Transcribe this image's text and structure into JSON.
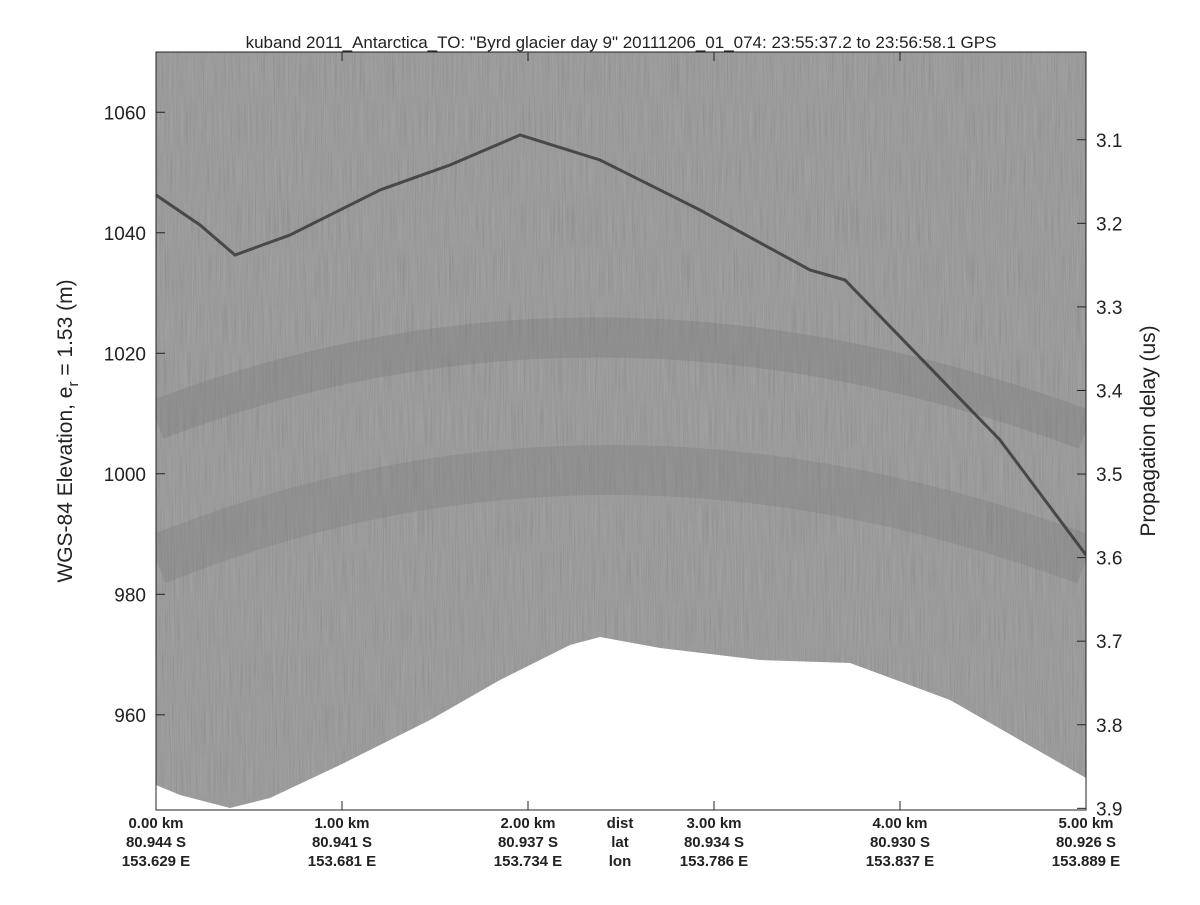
{
  "chart_data": {
    "type": "radargram",
    "title": "kuband 2011_Antarctica_TO: \"Byrd glacier day 9\"  20111206_01_074: 23:55:37.2 to 23:56:58.1 GPS",
    "ylabel": [
      "WGS-84 Elevation, e",
      "r",
      " = 1.53 (m)"
    ],
    "y2label": "Propagation delay (us)",
    "ylim": [
      944.2,
      1070
    ],
    "yticks": [
      960,
      980,
      1000,
      1020,
      1040,
      1060
    ],
    "y2lim": [
      3.902,
      2.995
    ],
    "y2ticks": [
      3.1,
      3.2,
      3.3,
      3.4,
      3.5,
      3.6,
      3.7,
      3.8,
      3.9
    ],
    "xlim": [
      0,
      5
    ],
    "xticks": [
      {
        "value": 0,
        "label": "0.00 km"
      },
      {
        "value": 1,
        "label": "1.00 km"
      },
      {
        "value": 2,
        "label": "2.00 km"
      },
      {
        "value": 3,
        "label": "3.00 km"
      },
      {
        "value": 4,
        "label": "4.00 km"
      },
      {
        "value": 5,
        "label": "5.00 km"
      }
    ],
    "row_headers": [
      "dist",
      "lat",
      "lon"
    ],
    "lat": [
      "80.944 S",
      "80.941 S",
      "80.937 S",
      "80.934 S",
      "80.930 S",
      "80.926 S"
    ],
    "lon": [
      "153.629 E",
      "153.681 E",
      "153.734 E",
      "153.786 E",
      "153.837 E",
      "153.889 E"
    ]
  }
}
